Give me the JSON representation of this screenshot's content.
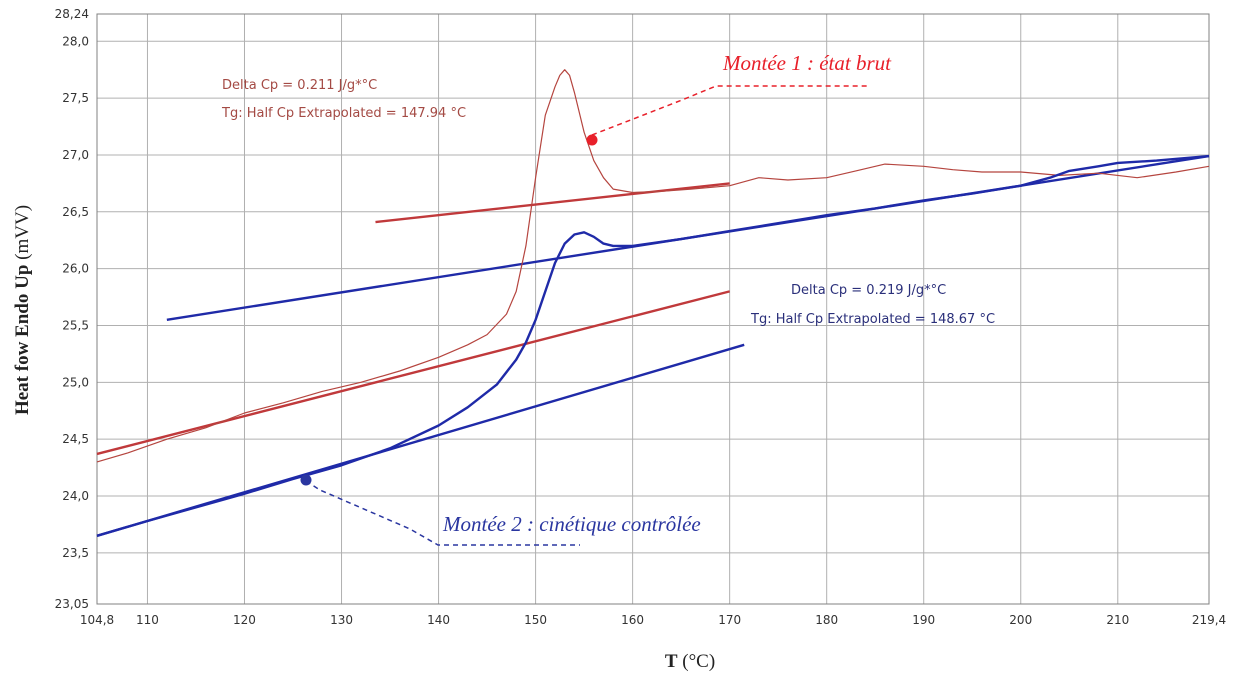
{
  "chart_data": {
    "type": "line",
    "xlabel_bold": "T",
    "xlabel_rest": " (°C)",
    "ylabel_bold": "Heat fow Endo Up",
    "ylabel_rest": " (mVV)",
    "xlim": [
      104.8,
      219.4
    ],
    "ylim": [
      23.05,
      28.24
    ],
    "x_ticks": [
      104.8,
      110,
      120,
      130,
      140,
      150,
      160,
      170,
      180,
      190,
      200,
      210,
      219.4
    ],
    "x_tick_labels": [
      "104,8",
      "110",
      "120",
      "130",
      "140",
      "150",
      "160",
      "170",
      "180",
      "190",
      "200",
      "210",
      "219,4"
    ],
    "y_ticks": [
      23.05,
      23.5,
      24.0,
      24.5,
      25.0,
      25.5,
      26.0,
      26.5,
      27.0,
      27.5,
      28.0,
      28.24
    ],
    "y_tick_labels": [
      "23,05",
      "23,5",
      "24,0",
      "24,5",
      "25,0",
      "25,5",
      "26,0",
      "26,5",
      "27,0",
      "27,5",
      "28,0",
      "28,24"
    ],
    "grid": true,
    "colors": {
      "red": "#c0393b",
      "blue": "#1f2aa8",
      "annot_red": "#e8202a",
      "annot_blue": "#2a36a0",
      "grid": "#b0b0b0"
    },
    "series": [
      {
        "name": "Montée 1 : état brut",
        "color": "#b5453f",
        "x": [
          104.8,
          108,
          112,
          116,
          120,
          124,
          128,
          132,
          136,
          140,
          143,
          145,
          147,
          148,
          149,
          150,
          151,
          152,
          152.5,
          153,
          153.5,
          154,
          155,
          156,
          157,
          158,
          160,
          163,
          166,
          170,
          173,
          176,
          180,
          183,
          186,
          190,
          193,
          196,
          200,
          204,
          208,
          212,
          216,
          219.4
        ],
        "y": [
          24.3,
          24.38,
          24.5,
          24.6,
          24.73,
          24.82,
          24.92,
          25.0,
          25.1,
          25.22,
          25.33,
          25.42,
          25.6,
          25.8,
          26.2,
          26.8,
          27.35,
          27.6,
          27.7,
          27.75,
          27.7,
          27.55,
          27.2,
          26.95,
          26.8,
          26.7,
          26.67,
          26.68,
          26.7,
          26.73,
          26.8,
          26.78,
          26.8,
          26.86,
          26.92,
          26.9,
          26.87,
          26.85,
          26.85,
          26.82,
          26.84,
          26.8,
          26.85,
          26.9
        ]
      },
      {
        "name": "Montée 2 : cinétique contrôlée",
        "color": "#1f2aa8",
        "x": [
          104.8,
          110,
          115,
          120,
          125,
          130,
          135,
          140,
          143,
          146,
          148,
          149,
          150,
          151,
          152,
          153,
          154,
          155,
          156,
          157,
          158,
          160,
          165,
          170,
          175,
          180,
          185,
          190,
          195,
          200,
          203,
          205,
          208,
          210,
          214,
          219.4
        ],
        "y": [
          23.65,
          23.78,
          23.9,
          24.02,
          24.15,
          24.27,
          24.42,
          24.62,
          24.78,
          24.98,
          25.2,
          25.35,
          25.55,
          25.8,
          26.05,
          26.22,
          26.3,
          26.32,
          26.28,
          26.22,
          26.2,
          26.2,
          26.26,
          26.33,
          26.4,
          26.47,
          26.53,
          26.6,
          26.66,
          26.73,
          26.8,
          26.86,
          26.9,
          26.93,
          26.95,
          26.99
        ]
      }
    ],
    "tangent_lines": [
      {
        "color": "#c0393b",
        "x": [
          104.8,
          170
        ],
        "y": [
          24.37,
          25.8
        ]
      },
      {
        "color": "#c0393b",
        "x": [
          133.5,
          170
        ],
        "y": [
          26.41,
          26.75
        ]
      },
      {
        "color": "#1f2aa8",
        "x": [
          104.8,
          171.5
        ],
        "y": [
          23.65,
          25.33
        ]
      },
      {
        "color": "#1f2aa8",
        "x": [
          112,
          219.4
        ],
        "y": [
          25.55,
          26.99
        ]
      }
    ],
    "annotations": [
      {
        "lines": [
          "Delta Cp = 0.211 J/g*°C",
          "Tg: Half Cp Extrapolated = 147.94 °C"
        ],
        "color": "#a44a44"
      },
      {
        "lines": [
          "Delta Cp = 0.219 J/g*°C",
          "Tg: Half Cp Extrapolated = 148.67 °C"
        ],
        "color": "#2a2f7a"
      }
    ],
    "callouts": [
      {
        "label": "Montée 1 : état brut",
        "color": "#e8202a",
        "point": [
          155.8,
          27.14
        ]
      },
      {
        "label": "Montée 2 : cinétique contrôlée",
        "color": "#2a36a0",
        "point": [
          126.3,
          24.18
        ]
      }
    ]
  }
}
